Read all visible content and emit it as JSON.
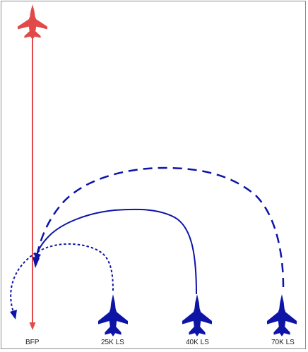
{
  "colors": {
    "threat": "#e24a4a",
    "friendly": "#0d14a6",
    "background": "#ffffff",
    "border": "#8c8c8c"
  },
  "labels": {
    "bfp": "BFP",
    "ls25": "25K LS",
    "ls40": "40K LS",
    "ls70": "70K LS"
  },
  "icons": {
    "threat": "fighter-jet-icon",
    "friendly": "fighter-jet-icon"
  }
}
